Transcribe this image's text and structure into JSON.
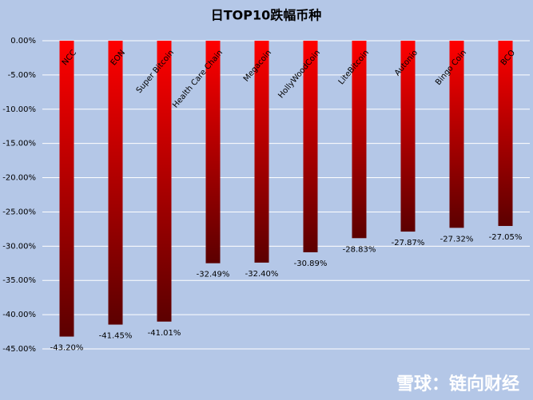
{
  "chart_data": {
    "type": "bar",
    "title": "日TOP10跌幅币种",
    "categories": [
      "NCC",
      "EON",
      "Super Bitcoin",
      "Health Care Chain",
      "Megacoin",
      "HollyWoodCoin",
      "LiteBitcoin",
      "Autonio",
      "Bingo Coin",
      "BCO"
    ],
    "values": [
      -43.2,
      -41.45,
      -41.01,
      -32.49,
      -32.4,
      -30.89,
      -28.83,
      -27.87,
      -27.32,
      -27.05
    ],
    "value_labels": [
      "-43.20%",
      "-41.45%",
      "-41.01%",
      "-32.49%",
      "-32.40%",
      "-30.89%",
      "-28.83%",
      "-27.87%",
      "-27.32%",
      "-27.05%"
    ],
    "color": "#ff0000",
    "ylim": [
      -45,
      0
    ],
    "yticks": [
      {
        "value": 0,
        "label": "0.00%"
      },
      {
        "value": -5,
        "label": "-5.00%"
      },
      {
        "value": -10,
        "label": "-10.00%"
      },
      {
        "value": -15,
        "label": "-15.00%"
      },
      {
        "value": -20,
        "label": "-20.00%"
      },
      {
        "value": -25,
        "label": "-25.00%"
      },
      {
        "value": -30,
        "label": "-30.00%"
      },
      {
        "value": -35,
        "label": "-35.00%"
      },
      {
        "value": -40,
        "label": "-40.00%"
      },
      {
        "value": -45,
        "label": "-45.00%"
      }
    ],
    "grid": true,
    "watermark": "雪球：链向财经"
  }
}
